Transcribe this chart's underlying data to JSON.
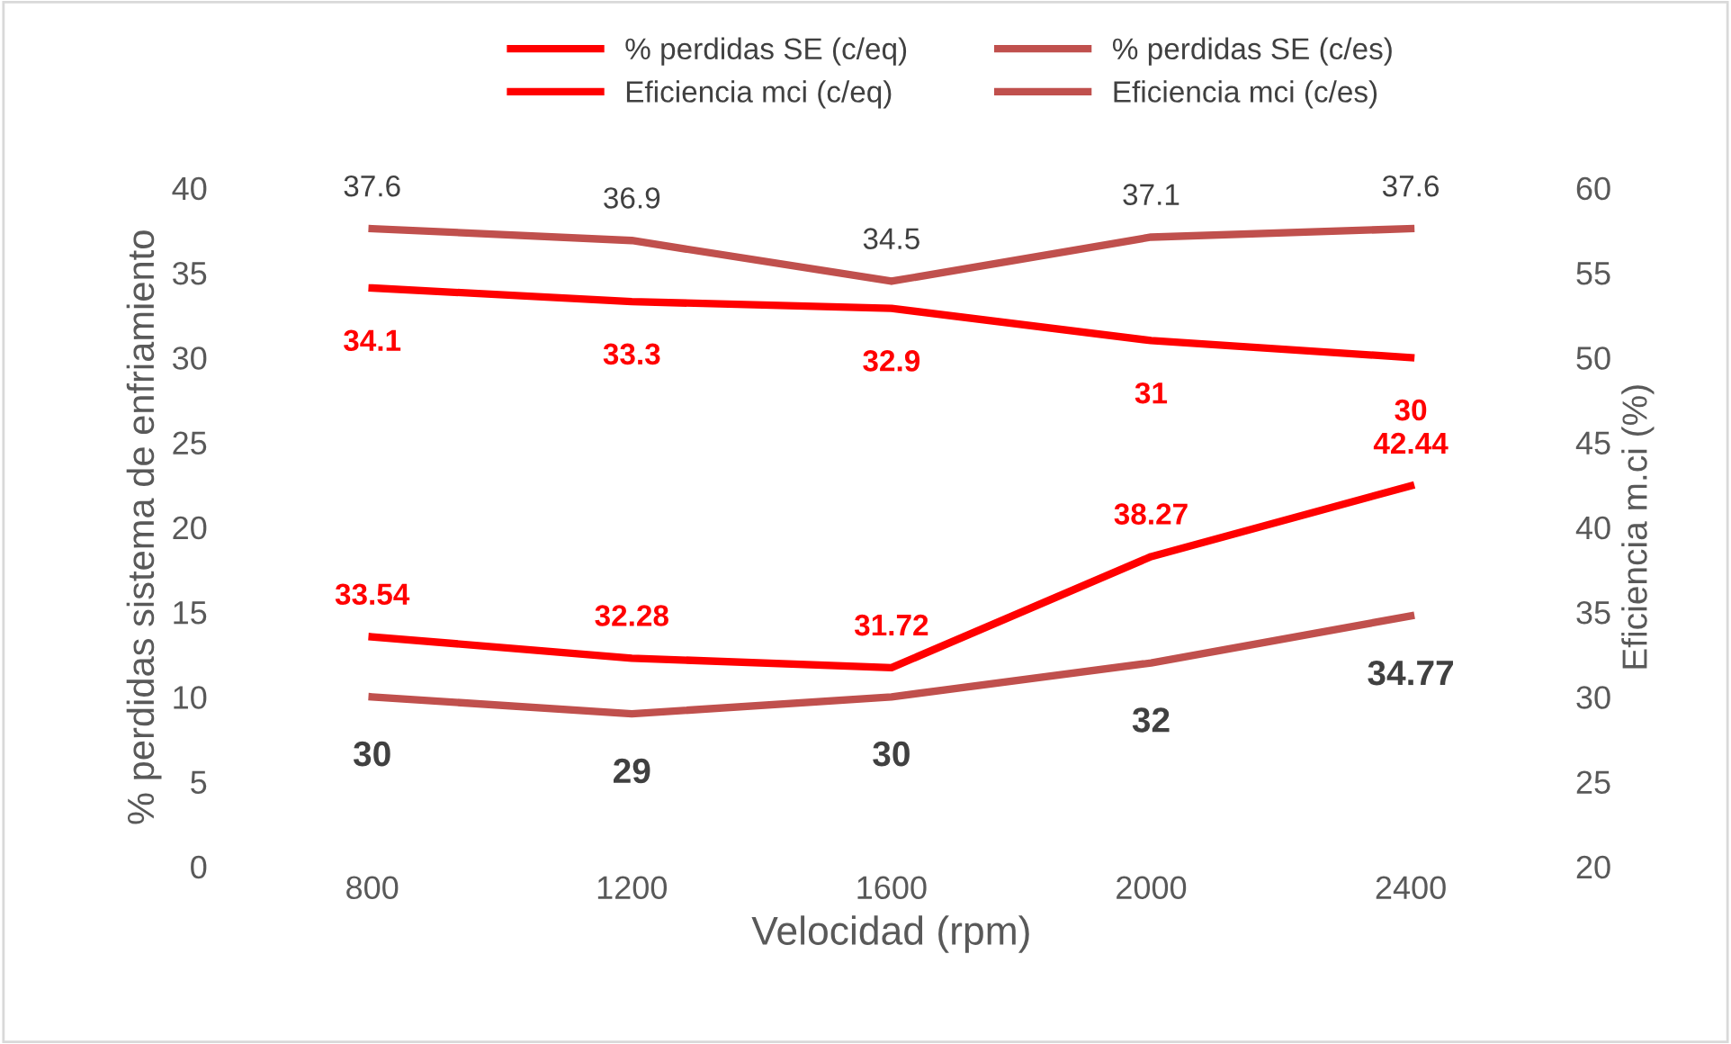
{
  "chart_data": {
    "type": "line",
    "xlabel": "Velocidad (rpm)",
    "ylabel": "% perdidas sistema de enfriamiento",
    "y2label": "Eficiencia m.ci (%)",
    "categories": [
      "800",
      "1200",
      "1600",
      "2000",
      "2400"
    ],
    "series": [
      {
        "name": "% perdidas SE (c/eq)",
        "color": "#ff0000",
        "values": [
          34.1,
          33.3,
          32.9,
          31,
          30
        ]
      },
      {
        "name": "% perdidas SE (c/es)",
        "color": "#c0504d",
        "values": [
          37.6,
          36.9,
          34.5,
          37.1,
          37.6
        ]
      },
      {
        "name": "Eficiencia mci (c/eq)",
        "color": "#ff0000",
        "axis": "y2",
        "values": [
          33.54,
          32.28,
          31.72,
          38.27,
          42.44
        ]
      },
      {
        "name": "Eficiencia mci (c/es)",
        "color": "#c0504d",
        "axis": "y2",
        "values": [
          30,
          29,
          30,
          32,
          34.77
        ]
      }
    ],
    "ylim": [
      0,
      40
    ],
    "yticks": [
      0,
      5,
      10,
      15,
      20,
      25,
      30,
      35,
      40
    ],
    "y2lim": [
      20,
      60
    ],
    "y2ticks": [
      20,
      25,
      30,
      35,
      40,
      45,
      50,
      55,
      60
    ],
    "data_labels": true,
    "grid": false,
    "legend": "top",
    "marker": "none",
    "line_style": "solid"
  }
}
